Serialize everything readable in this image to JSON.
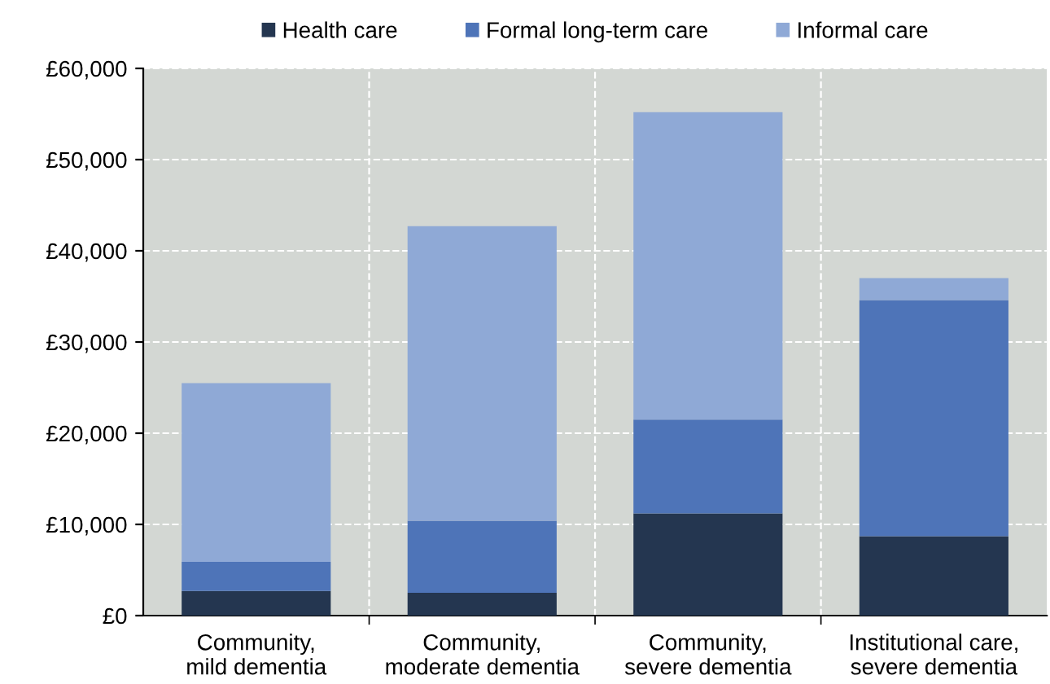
{
  "chart_data": {
    "type": "bar",
    "stacked": true,
    "categories": [
      "Community,\nmild dementia",
      "Community,\nmoderate dementia",
      "Community,\nsevere dementia",
      "Institutional care,\nsevere dementia"
    ],
    "series": [
      {
        "name": "Health care",
        "color": "#243650",
        "values": [
          2700,
          2500,
          11200,
          8700
        ]
      },
      {
        "name": "Formal long-term care",
        "color": "#4e74b8",
        "values": [
          3200,
          7900,
          10300,
          25900
        ]
      },
      {
        "name": "Informal care",
        "color": "#8fa9d6",
        "values": [
          19600,
          32300,
          33700,
          2400
        ]
      }
    ],
    "ylim": [
      0,
      60000
    ],
    "yticks": [
      {
        "value": 0,
        "label": "£0"
      },
      {
        "value": 10000,
        "label": "£10,000"
      },
      {
        "value": 20000,
        "label": "£20,000"
      },
      {
        "value": 30000,
        "label": "£30,000"
      },
      {
        "value": 40000,
        "label": "£40,000"
      },
      {
        "value": 50000,
        "label": "£50,000"
      },
      {
        "value": 60000,
        "label": "£60,000"
      }
    ],
    "grid": true,
    "legend": "top"
  }
}
